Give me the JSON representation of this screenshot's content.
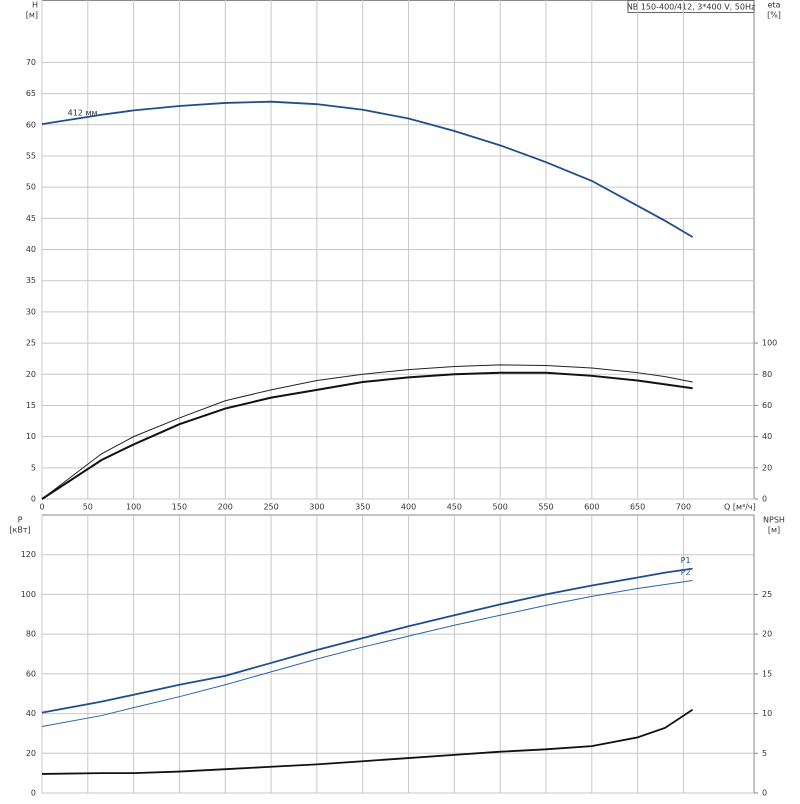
{
  "chart_data": [
    {
      "type": "line",
      "title": "NB 150-400/412, 3*400 V, 50Hz",
      "y_label": "H",
      "y_unit": "[м]",
      "y2_label": "eta",
      "y2_unit": "[%]",
      "x_label": "Q [м³/ч]",
      "x": [
        0,
        65,
        100,
        150,
        200,
        250,
        300,
        350,
        400,
        450,
        500,
        550,
        600,
        650,
        680,
        710
      ],
      "xlim": [
        0,
        777
      ],
      "xticks": [
        0,
        50,
        100,
        150,
        200,
        250,
        300,
        350,
        400,
        450,
        500,
        550,
        600,
        650,
        700
      ],
      "ylim": [
        0,
        80
      ],
      "yticks": [
        0,
        5,
        10,
        15,
        20,
        25,
        30,
        35,
        40,
        45,
        50,
        55,
        60,
        65,
        70
      ],
      "y2lim": [
        0,
        320
      ],
      "y2ticks": [
        0,
        20,
        40,
        60,
        80,
        100
      ],
      "grid": true,
      "series": [
        {
          "name": "412 мм",
          "color": "#1f4e8c",
          "line_width": 1.8,
          "values": [
            60.1,
            61.6,
            62.3,
            63.0,
            63.5,
            63.7,
            63.3,
            62.4,
            61.0,
            59.0,
            56.7,
            54.0,
            51.0,
            47.0,
            44.6,
            42.0
          ]
        },
        {
          "color": "#222222",
          "line_width": 1,
          "axis": "y2",
          "values": [
            0,
            29,
            40,
            52,
            63,
            70,
            76,
            80,
            83,
            85,
            86,
            85.6,
            84,
            81,
            78.5,
            75
          ]
        },
        {
          "color": "#111111",
          "line_width": 2,
          "axis": "y2",
          "values": [
            0,
            25,
            35,
            48,
            58,
            65,
            70,
            75,
            78,
            80,
            81,
            81,
            79,
            76,
            73.5,
            71
          ]
        }
      ]
    },
    {
      "type": "line",
      "y_label": "P",
      "y_unit": "[кВт]",
      "y2_label": "NPSH",
      "y2_unit": "[м]",
      "x": [
        0,
        65,
        100,
        150,
        200,
        250,
        300,
        350,
        400,
        450,
        500,
        550,
        600,
        650,
        680,
        710
      ],
      "xlim": [
        0,
        777
      ],
      "ylim": [
        0,
        140
      ],
      "yticks": [
        0,
        20,
        40,
        60,
        80,
        100,
        120
      ],
      "y2lim": [
        0,
        35
      ],
      "y2ticks": [
        0,
        5,
        10,
        15,
        20,
        25
      ],
      "grid": true,
      "series": [
        {
          "name": "P1",
          "color": "#1f4e8c",
          "line_width": 1.8,
          "values": [
            40.5,
            46,
            49.5,
            54.5,
            59,
            65.5,
            72,
            78,
            84,
            89.5,
            95,
            100,
            104.5,
            108.5,
            111,
            113
          ]
        },
        {
          "name": "P2",
          "color": "#2d64a8",
          "line_width": 1,
          "values": [
            33.5,
            39,
            43,
            48.5,
            54.5,
            61,
            67.5,
            73.5,
            79,
            84.5,
            89.5,
            94.5,
            99,
            103,
            105,
            107
          ]
        },
        {
          "color": "#111111",
          "line_width": 1.8,
          "axis": "y2",
          "values": [
            2.4,
            2.5,
            2.5,
            2.7,
            3.0,
            3.3,
            3.6,
            4.0,
            4.4,
            4.8,
            5.2,
            5.5,
            5.9,
            7.0,
            8.2,
            10.5
          ]
        }
      ]
    }
  ]
}
